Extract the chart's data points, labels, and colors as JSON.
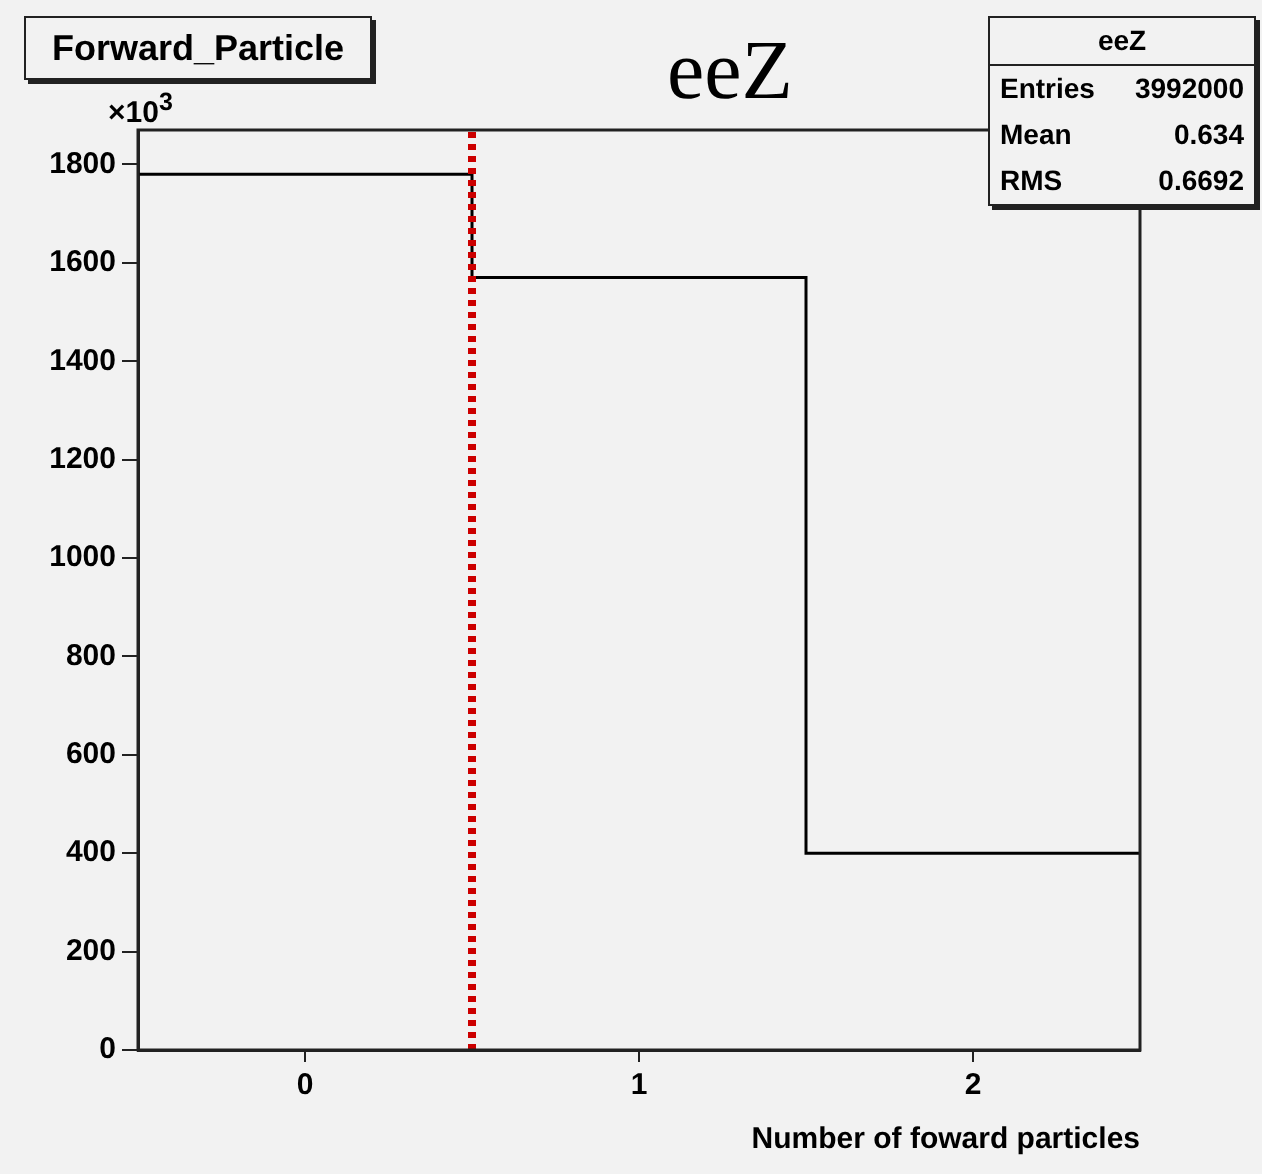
{
  "chart_data": {
    "type": "histogram",
    "title": "eeZ",
    "xlabel": "Number of foward particles",
    "bins": [
      -0.5,
      0.5,
      1.5,
      2.5
    ],
    "values": [
      1780,
      1570,
      400
    ],
    "color": "#000000",
    "xlim": [
      -0.5,
      2.5
    ],
    "xticks": [
      0,
      1,
      2
    ],
    "ylim": [
      0,
      1870
    ],
    "yticks": [
      0,
      200,
      400,
      600,
      800,
      1000,
      1200,
      1400,
      1600,
      1800
    ],
    "ref_lines": [
      {
        "axis": "x",
        "value": 0.5,
        "color": "#cc0000",
        "line_style": "dotted"
      }
    ],
    "annotations": [
      "Forward_Particle",
      "×10$^{3}$",
      "eeZ",
      "Entries 3992000",
      "Mean 0.634",
      "RMS 0.6692"
    ],
    "grid": false,
    "legend": false
  }
}
